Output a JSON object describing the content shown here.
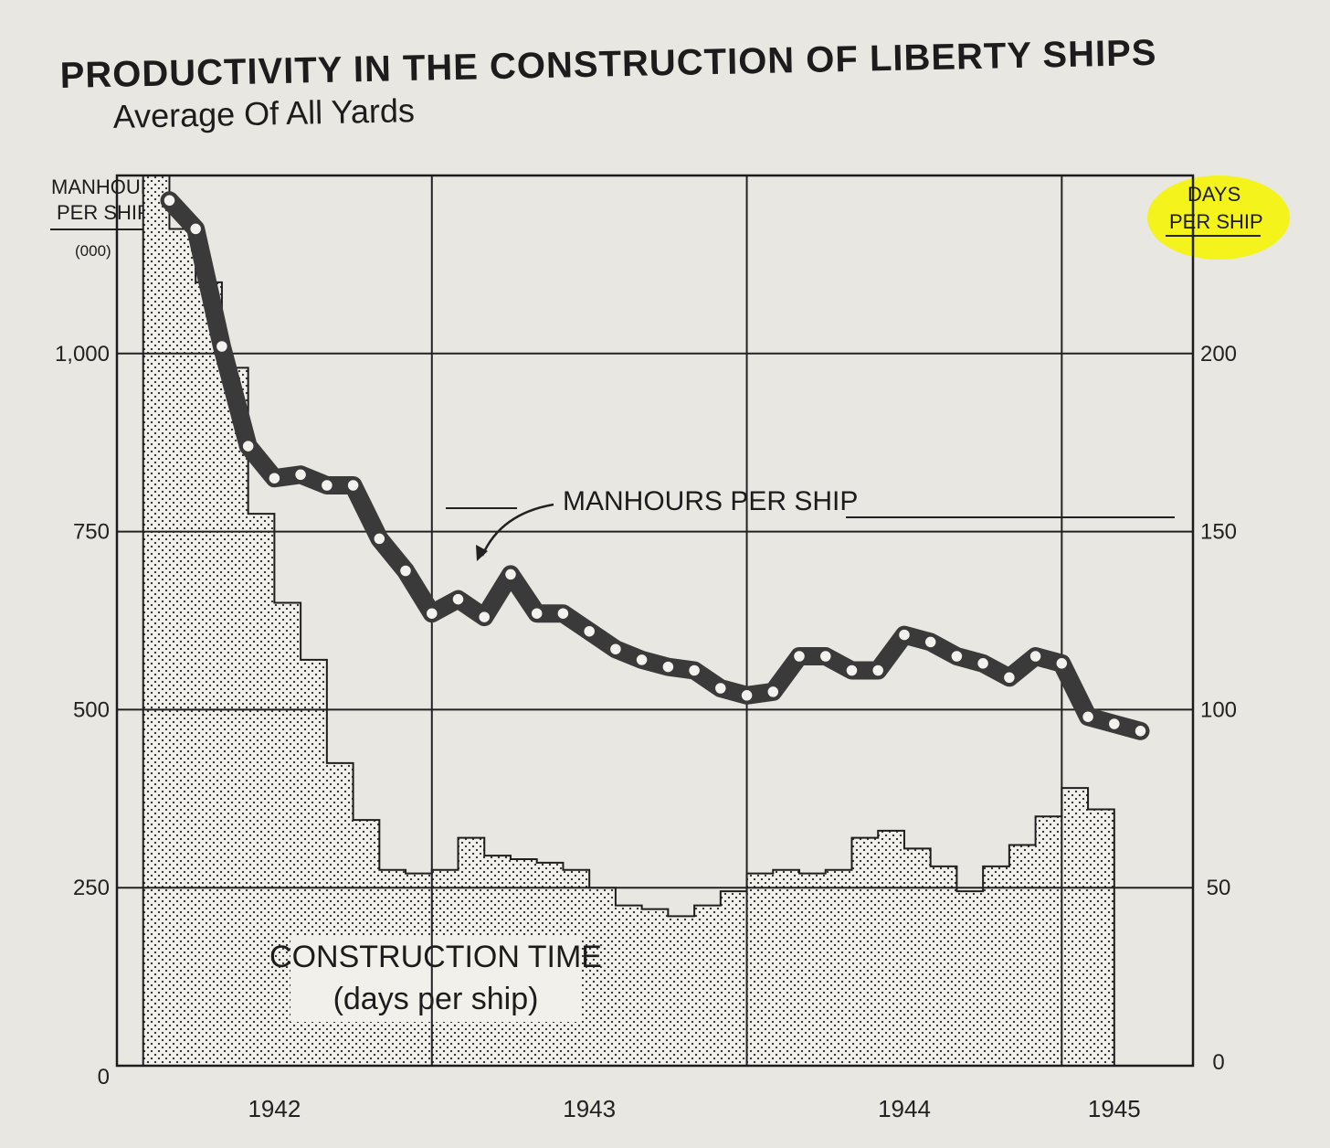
{
  "chart_data": {
    "type": "line",
    "title": "PRODUCTIVITY IN THE CONSTRUCTION OF LIBERTY SHIPS",
    "subtitle": "Average Of All Yards",
    "left_axis": {
      "label_line1": "MANHOURS",
      "label_line2": "PER SHIP",
      "unit": "(000)",
      "range": [
        0,
        1250
      ],
      "ticks": [
        0,
        250,
        500,
        750,
        1000
      ],
      "tick_labels": [
        "0",
        "250",
        "500",
        "750",
        "1,000"
      ]
    },
    "right_axis": {
      "label_line1": "DAYS",
      "label_line2": "PER SHIP",
      "highlight_color": "#f4f40a",
      "range": [
        0,
        250
      ],
      "ticks": [
        0,
        50,
        100,
        150,
        200
      ],
      "tick_labels": [
        "0",
        "50",
        "100",
        "150",
        "200"
      ]
    },
    "x_axis": {
      "range": [
        0,
        41
      ],
      "year_boundaries": [
        12,
        24,
        36
      ],
      "year_labels": [
        {
          "label": "1942",
          "x": 6
        },
        {
          "label": "1943",
          "x": 18
        },
        {
          "label": "1944",
          "x": 30
        },
        {
          "label": "1945",
          "x": 38
        }
      ]
    },
    "series": [
      {
        "name": "MANHOURS PER SHIP",
        "axis": "left",
        "x": [
          2,
          3,
          4,
          5,
          6,
          7,
          8,
          9,
          10,
          11,
          12,
          13,
          14,
          15,
          16,
          17,
          18,
          19,
          20,
          21,
          22,
          23,
          24,
          25,
          26,
          27,
          28,
          29,
          30,
          31,
          32,
          33,
          34,
          35,
          36,
          37,
          38,
          39
        ],
        "values": [
          1215,
          1175,
          1010,
          870,
          825,
          830,
          815,
          815,
          740,
          695,
          635,
          655,
          630,
          690,
          635,
          635,
          610,
          585,
          570,
          560,
          555,
          530,
          520,
          525,
          575,
          575,
          555,
          555,
          605,
          595,
          575,
          565,
          545,
          575,
          565,
          490,
          480,
          470
        ]
      },
      {
        "name": "CONSTRUCTION TIME",
        "label_line2": "(days per ship)",
        "axis": "right",
        "type": "step-area",
        "x_start": 1,
        "values": [
          250,
          235,
          220,
          196,
          155,
          130,
          114,
          85,
          69,
          55,
          54,
          55,
          64,
          59,
          58,
          57,
          55,
          50,
          45,
          44,
          42,
          45,
          49,
          54,
          55,
          54,
          55,
          64,
          66,
          61,
          56,
          49,
          56,
          62,
          70,
          78,
          72
        ]
      }
    ],
    "annotation": "MANHOURS PER SHIP",
    "grid": true
  }
}
